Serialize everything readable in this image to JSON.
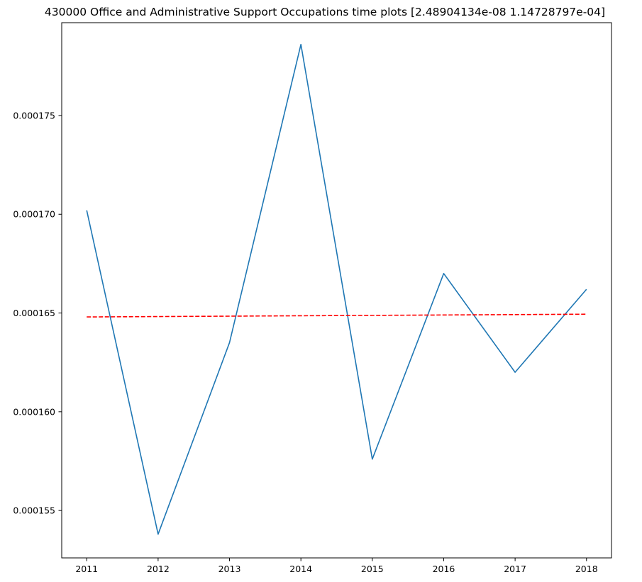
{
  "chart_data": {
    "type": "line",
    "title": "430000 Office and Administrative Support Occupations time plots [2.48904134e-08 1.14728797e-04]",
    "xlabel": "",
    "ylabel": "",
    "x": [
      2011,
      2012,
      2013,
      2014,
      2015,
      2016,
      2017,
      2018
    ],
    "x_tick_labels": [
      "2011",
      "2012",
      "2013",
      "2014",
      "2015",
      "2016",
      "2017",
      "2018"
    ],
    "y_ticks": [
      0.000155,
      0.00016,
      0.000165,
      0.00017,
      0.000175
    ],
    "y_tick_labels": [
      "0.000155",
      "0.000160",
      "0.000165",
      "0.000170",
      "0.000175"
    ],
    "ylim": [
      0.0001526,
      0.0001797
    ],
    "xlim": [
      2010.65,
      2018.35
    ],
    "grid": false,
    "series": [
      {
        "style": "solid",
        "color": "#1f77b4",
        "values": [
          0.0001702,
          0.0001538,
          0.0001635,
          0.0001786,
          0.0001576,
          0.000167,
          0.000162,
          0.0001662
        ]
      },
      {
        "style": "dashed",
        "color": "#ff0000",
        "values": [
          0.0001648,
          0.00016482,
          0.00016484,
          0.00016486,
          0.00016488,
          0.0001649,
          0.00016492,
          0.00016494
        ]
      }
    ]
  }
}
